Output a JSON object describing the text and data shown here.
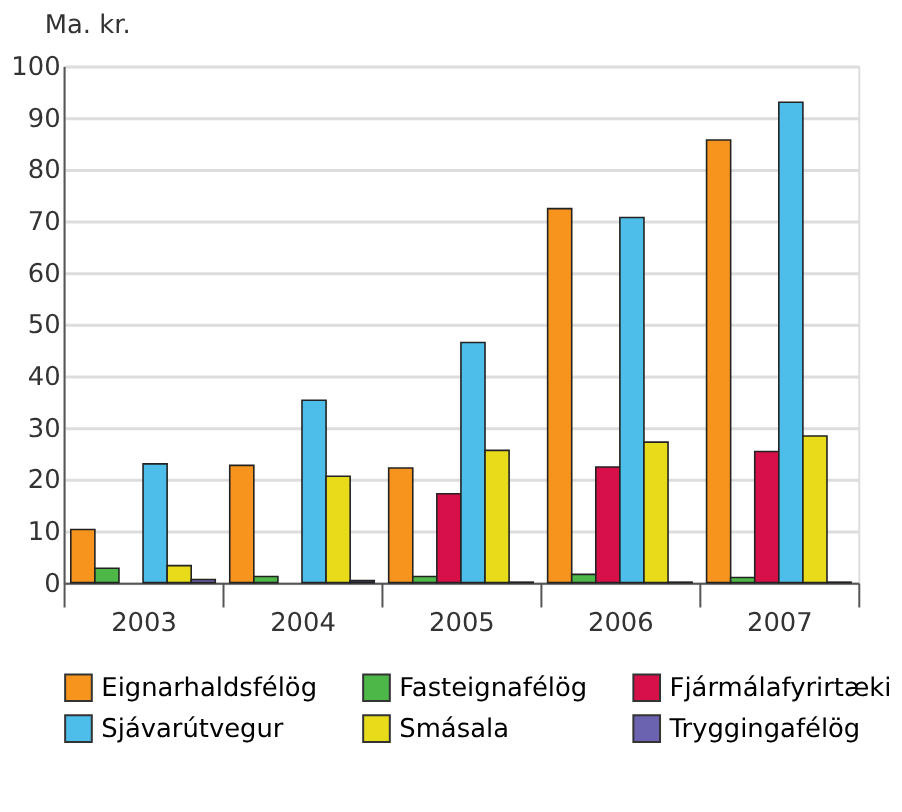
{
  "chart_data": {
    "type": "bar",
    "ylabel": "Ma. kr.",
    "categories": [
      "2003",
      "2004",
      "2005",
      "2006",
      "2007"
    ],
    "series": [
      {
        "name": "Eignarhaldsfélög",
        "color": "#f7941d",
        "values": [
          10.3,
          22.7,
          22.2,
          72.4,
          85.7
        ]
      },
      {
        "name": "Fasteignafélög",
        "color": "#4db848",
        "values": [
          2.8,
          1.2,
          1.2,
          1.6,
          1.0
        ]
      },
      {
        "name": "Fjármálafyrirtæki",
        "color": "#d7104a",
        "values": [
          null,
          null,
          17.2,
          22.4,
          25.4
        ]
      },
      {
        "name": "Sjávarútvegur",
        "color": "#4dbde9",
        "values": [
          23.0,
          35.3,
          46.5,
          70.7,
          93.0
        ]
      },
      {
        "name": "Smásala",
        "color": "#e8dc1a",
        "values": [
          3.3,
          20.6,
          25.6,
          27.2,
          28.4
        ]
      },
      {
        "name": "Tryggingafélög",
        "color": "#6b63b0",
        "values": [
          0.6,
          0.4,
          0.1,
          0.1,
          0.1
        ]
      }
    ],
    "ylim": [
      0,
      100
    ],
    "yticks": [
      0,
      10,
      20,
      30,
      40,
      50,
      60,
      70,
      80,
      90,
      100
    ],
    "grid": "y",
    "legend": "bottom left"
  }
}
